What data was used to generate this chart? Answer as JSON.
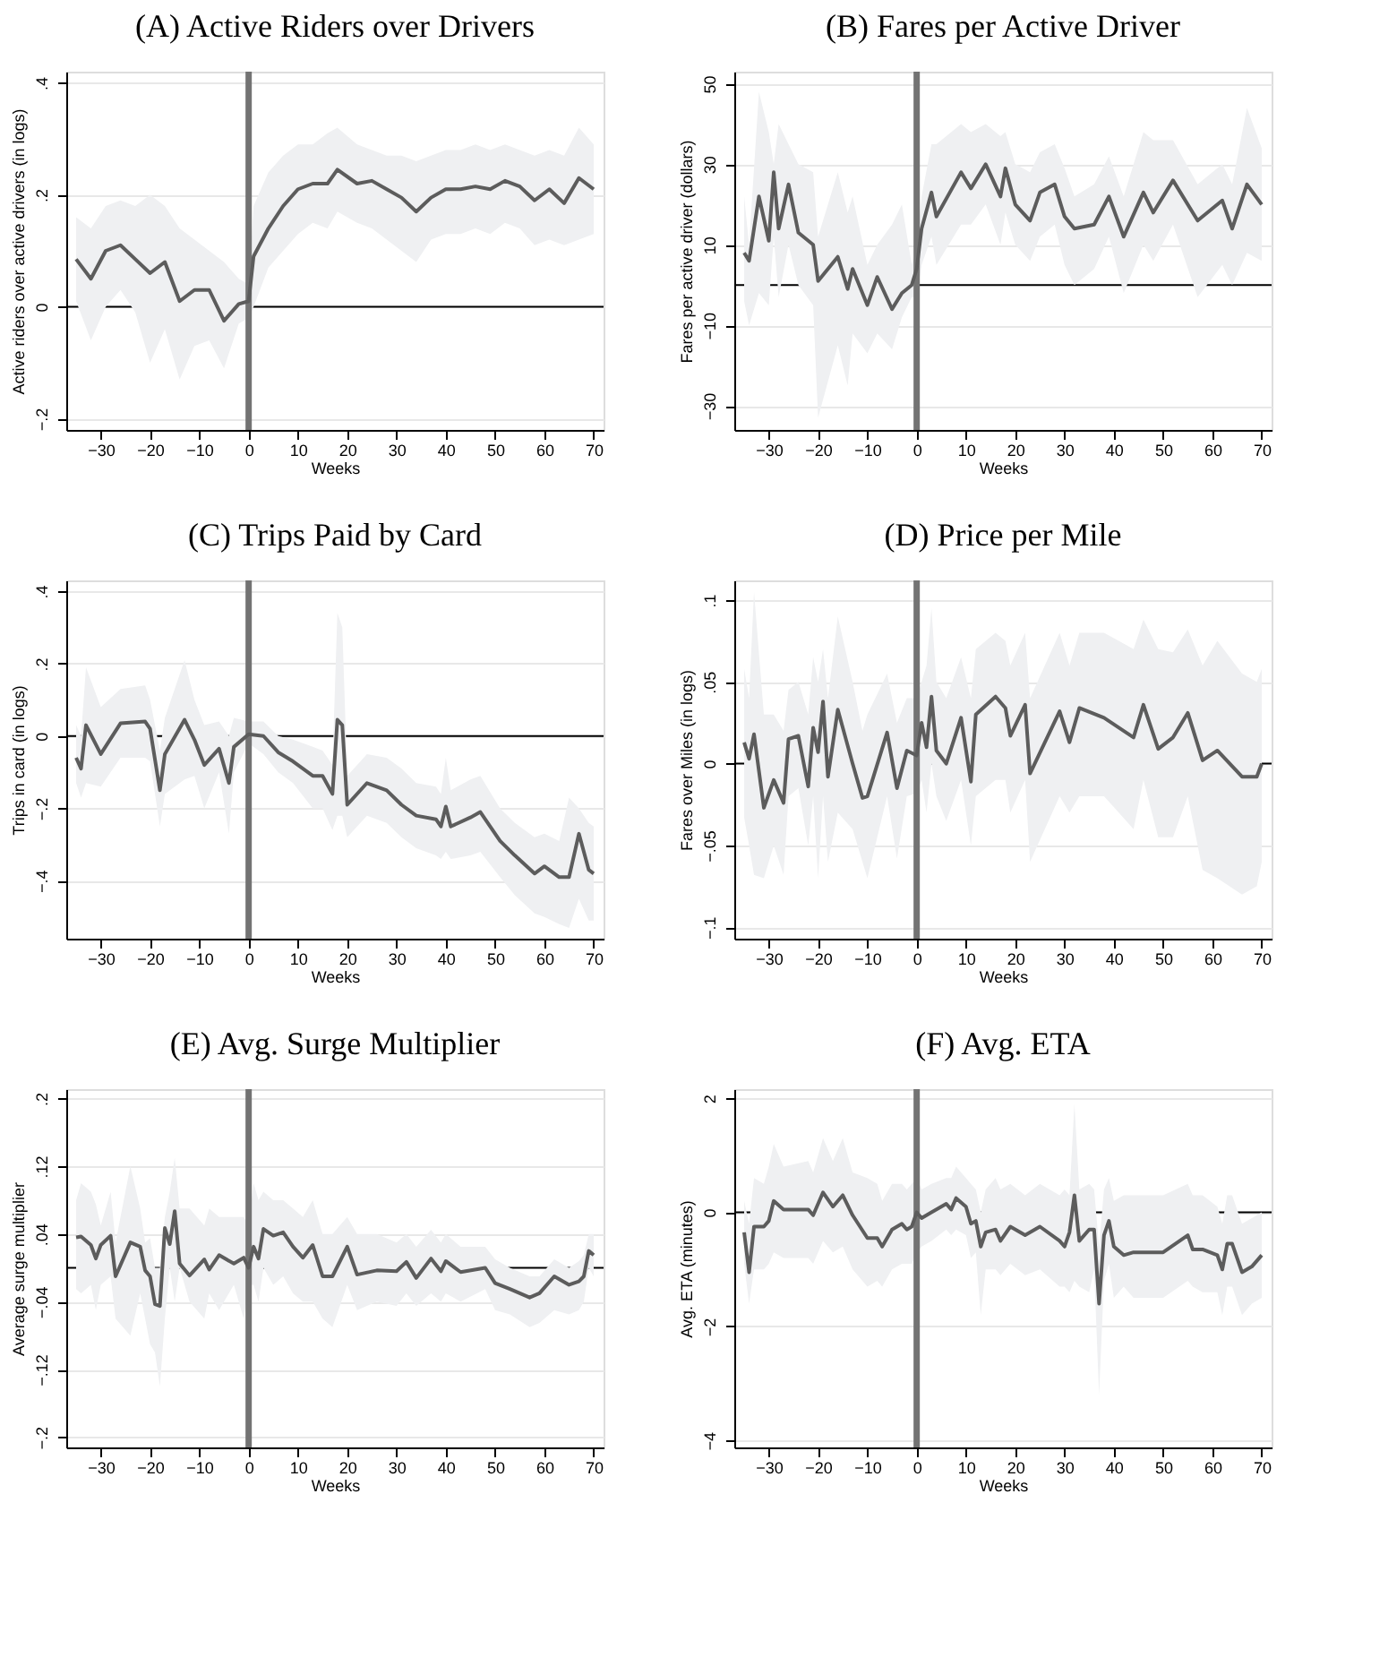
{
  "chart_data": [
    {
      "type": "line",
      "title": "(A) Active Riders over Drivers",
      "xlabel": "Weeks",
      "ylabel": "Active riders over active drivers (in logs)",
      "grid": "y",
      "xlim": [
        -37,
        72
      ],
      "xticks": [
        {
          "value": -30,
          "label": "−30"
        },
        {
          "value": -20,
          "label": "−20"
        },
        {
          "value": -10,
          "label": "−10"
        },
        0,
        10,
        20,
        30,
        40,
        50,
        60,
        70
      ],
      "ylim": [
        -0.22,
        0.42
      ],
      "yticks": [
        {
          "value": -0.2,
          "label": "−.2"
        },
        0,
        {
          "value": 0.2,
          "label": ".2"
        },
        {
          "value": 0.4,
          "label": ".4"
        }
      ],
      "ref_lines": [
        {
          "axis": "y",
          "value": 0,
          "color": "#000000"
        },
        {
          "axis": "x",
          "value": 0,
          "color": "#737373"
        }
      ],
      "x": [
        -35,
        -32,
        -29,
        -26,
        -23,
        -20,
        -17,
        -14,
        -11,
        -8,
        -5,
        -2,
        0,
        1,
        4,
        7,
        10,
        13,
        16,
        18,
        22,
        25,
        28,
        31,
        34,
        37,
        40,
        43,
        46,
        49,
        52,
        55,
        58,
        61,
        64,
        67,
        70
      ],
      "series": [
        {
          "color": "#5c5c5c",
          "values": [
            0.085,
            0.05,
            0.1,
            0.11,
            0.085,
            0.06,
            0.08,
            0.01,
            0.03,
            0.03,
            -0.025,
            0.005,
            0.01,
            0.09,
            0.14,
            0.18,
            0.21,
            0.22,
            0.22,
            0.245,
            0.22,
            0.225,
            0.21,
            0.195,
            0.17,
            0.195,
            0.21,
            0.21,
            0.215,
            0.21,
            0.225,
            0.215,
            0.19,
            0.21,
            0.185,
            0.23,
            0.21
          ],
          "upper": [
            0.16,
            0.14,
            0.18,
            0.19,
            0.18,
            0.2,
            0.18,
            0.14,
            0.12,
            0.1,
            0.08,
            0.05,
            0.04,
            0.18,
            0.24,
            0.27,
            0.29,
            0.29,
            0.31,
            0.32,
            0.29,
            0.28,
            0.27,
            0.27,
            0.26,
            0.27,
            0.28,
            0.28,
            0.29,
            0.28,
            0.29,
            0.28,
            0.27,
            0.28,
            0.27,
            0.32,
            0.29
          ],
          "lower": [
            0.01,
            -0.06,
            0.0,
            0.03,
            -0.01,
            -0.1,
            -0.04,
            -0.13,
            -0.07,
            -0.06,
            -0.11,
            -0.03,
            -0.02,
            0.0,
            0.07,
            0.1,
            0.13,
            0.15,
            0.14,
            0.17,
            0.15,
            0.14,
            0.12,
            0.1,
            0.08,
            0.12,
            0.13,
            0.13,
            0.14,
            0.13,
            0.15,
            0.14,
            0.11,
            0.12,
            0.11,
            0.12,
            0.13
          ]
        }
      ]
    },
    {
      "type": "line",
      "title": "(B) Fares per Active Driver",
      "xlabel": "Weeks",
      "ylabel": "Fares per active driver (dollars)",
      "grid": "y",
      "xlim": [
        -37,
        72
      ],
      "xticks": [
        {
          "value": -30,
          "label": "−30"
        },
        {
          "value": -20,
          "label": "−20"
        },
        {
          "value": -10,
          "label": "−10"
        },
        0,
        10,
        20,
        30,
        40,
        50,
        60,
        70
      ],
      "ylim": [
        -36,
        53
      ],
      "yticks": [
        {
          "value": -30,
          "label": "−30"
        },
        {
          "value": -10,
          "label": "−10"
        },
        10,
        30,
        50
      ],
      "ref_lines": [
        {
          "axis": "y",
          "value": 0,
          "color": "#000000"
        },
        {
          "axis": "x",
          "value": 0,
          "color": "#737373"
        }
      ],
      "x": [
        -35,
        -34,
        -32,
        -30,
        -29,
        -28,
        -26,
        -24,
        -21,
        -20,
        -16,
        -14,
        -13,
        -10,
        -8,
        -5,
        -3,
        -1,
        0,
        1,
        3,
        4,
        9,
        11,
        14,
        17,
        18,
        20,
        23,
        25,
        28,
        30,
        32,
        36,
        39,
        42,
        46,
        48,
        52,
        57,
        62,
        64,
        67,
        70
      ],
      "series": [
        {
          "color": "#5c5c5c",
          "values": [
            8,
            6,
            22,
            11,
            28,
            14,
            25,
            13,
            10,
            1,
            7,
            -1,
            4,
            -5,
            2,
            -6,
            -2,
            0,
            4,
            14,
            23,
            17,
            28,
            24,
            30,
            22,
            29,
            20,
            16,
            23,
            25,
            17,
            14,
            15,
            22,
            12,
            23,
            18,
            26,
            16,
            21,
            14,
            25,
            20
          ],
          "upper": [
            22,
            10,
            48,
            38,
            30,
            40,
            35,
            30,
            28,
            12,
            28,
            18,
            22,
            5,
            10,
            15,
            20,
            5,
            10,
            22,
            35,
            35,
            40,
            38,
            40,
            37,
            38,
            30,
            28,
            33,
            35,
            29,
            22,
            25,
            32,
            22,
            38,
            36,
            36,
            25,
            30,
            25,
            44,
            34
          ],
          "lower": [
            -4,
            -10,
            -2,
            -5,
            12,
            -3,
            10,
            0,
            -5,
            -33,
            -15,
            -25,
            -12,
            -17,
            -12,
            -16,
            -8,
            -3,
            -3,
            5,
            12,
            5,
            15,
            15,
            20,
            10,
            18,
            10,
            6,
            12,
            15,
            5,
            0,
            4,
            12,
            -2,
            10,
            6,
            15,
            -3,
            5,
            0,
            8,
            6
          ]
        }
      ]
    },
    {
      "type": "line",
      "title": "(C) Trips Paid by Card",
      "xlabel": "Weeks",
      "ylabel": "Trips in card (in logs)",
      "grid": "y",
      "xlim": [
        -37,
        72
      ],
      "xticks": [
        {
          "value": -30,
          "label": "−30"
        },
        {
          "value": -20,
          "label": "−20"
        },
        {
          "value": -10,
          "label": "−10"
        },
        0,
        10,
        20,
        30,
        40,
        50,
        60,
        70
      ],
      "ylim": [
        -0.56,
        0.43
      ],
      "yticks": [
        {
          "value": -0.4,
          "label": "−.4"
        },
        {
          "value": -0.2,
          "label": "−.2"
        },
        0,
        {
          "value": 0.2,
          "label": ".2"
        },
        {
          "value": 0.4,
          "label": ".4"
        }
      ],
      "ref_lines": [
        {
          "axis": "y",
          "value": 0,
          "color": "#000000"
        },
        {
          "axis": "x",
          "value": 0,
          "color": "#737373"
        }
      ],
      "x": [
        -35,
        -34,
        -33,
        -30,
        -26,
        -21,
        -20,
        -18,
        -17,
        -13,
        -11,
        -9,
        -6,
        -4,
        -3,
        0,
        3,
        6,
        9,
        13,
        15,
        17,
        18,
        19,
        20,
        24,
        28,
        31,
        34,
        38,
        39,
        40,
        41,
        45,
        47,
        51,
        54,
        58,
        60,
        63,
        65,
        67,
        69,
        70
      ],
      "series": [
        {
          "color": "#5c5c5c",
          "values": [
            -0.06,
            -0.09,
            0.03,
            -0.05,
            0.035,
            0.04,
            0.02,
            -0.15,
            -0.05,
            0.045,
            -0.01,
            -0.08,
            -0.035,
            -0.13,
            -0.03,
            0.005,
            0.0,
            -0.045,
            -0.07,
            -0.11,
            -0.11,
            -0.16,
            0.045,
            0.03,
            -0.19,
            -0.13,
            -0.15,
            -0.19,
            -0.22,
            -0.23,
            -0.25,
            -0.195,
            -0.25,
            -0.225,
            -0.21,
            -0.29,
            -0.33,
            -0.38,
            -0.36,
            -0.39,
            -0.39,
            -0.27,
            -0.37,
            -0.38
          ],
          "upper": [
            0.03,
            0.0,
            0.19,
            0.08,
            0.13,
            0.14,
            0.1,
            -0.04,
            0.05,
            0.21,
            0.1,
            0.03,
            0.04,
            0.0,
            0.05,
            0.04,
            0.04,
            0.0,
            -0.01,
            -0.03,
            -0.04,
            -0.08,
            0.34,
            0.3,
            -0.11,
            -0.05,
            -0.06,
            -0.09,
            -0.13,
            -0.14,
            -0.16,
            -0.06,
            -0.15,
            -0.12,
            -0.11,
            -0.2,
            -0.24,
            -0.28,
            -0.27,
            -0.29,
            -0.17,
            -0.2,
            -0.24,
            -0.25
          ],
          "lower": [
            -0.13,
            -0.17,
            -0.13,
            -0.14,
            -0.06,
            -0.06,
            -0.07,
            -0.25,
            -0.16,
            -0.12,
            -0.11,
            -0.2,
            -0.1,
            -0.27,
            -0.1,
            -0.02,
            -0.05,
            -0.1,
            -0.13,
            -0.2,
            -0.2,
            -0.26,
            -0.22,
            -0.22,
            -0.28,
            -0.22,
            -0.24,
            -0.28,
            -0.31,
            -0.33,
            -0.34,
            -0.32,
            -0.34,
            -0.33,
            -0.32,
            -0.39,
            -0.44,
            -0.49,
            -0.5,
            -0.52,
            -0.53,
            -0.45,
            -0.51,
            -0.51
          ]
        }
      ]
    },
    {
      "type": "line",
      "title": "(D) Price per Mile",
      "xlabel": "Weeks",
      "ylabel": "Fares over Miles (in logs)",
      "grid": "y",
      "xlim": [
        -37,
        72
      ],
      "xticks": [
        {
          "value": -30,
          "label": "−30"
        },
        {
          "value": -20,
          "label": "−20"
        },
        {
          "value": -10,
          "label": "−10"
        },
        0,
        10,
        20,
        30,
        40,
        50,
        60,
        70
      ],
      "ylim": [
        -0.107,
        0.112
      ],
      "yticks": [
        {
          "value": -0.1,
          "label": "−.1"
        },
        {
          "value": -0.05,
          "label": "−.05"
        },
        0,
        {
          "value": 0.05,
          "label": ".05"
        },
        {
          "value": 0.1,
          "label": ".1"
        }
      ],
      "ref_lines": [
        {
          "axis": "y",
          "value": 0,
          "color": "#000000"
        },
        {
          "axis": "x",
          "value": 0,
          "color": "#737373"
        }
      ],
      "x": [
        -35,
        -34,
        -33,
        -31,
        -29,
        -27,
        -26,
        -24,
        -22,
        -21,
        -20,
        -19,
        -18,
        -16,
        -13,
        -11,
        -10,
        -6,
        -4,
        -2,
        0,
        1,
        2,
        3,
        4,
        6,
        9,
        11,
        12,
        16,
        18,
        19,
        22,
        23,
        29,
        31,
        33,
        38,
        41,
        44,
        46,
        49,
        52,
        55,
        58,
        61,
        66,
        69,
        70
      ],
      "series": [
        {
          "color": "#5c5c5c",
          "values": [
            0.013,
            0.003,
            0.018,
            -0.027,
            -0.01,
            -0.024,
            0.015,
            0.017,
            -0.014,
            0.022,
            0.007,
            0.038,
            -0.008,
            0.033,
            0.0,
            -0.021,
            -0.02,
            0.019,
            -0.015,
            0.008,
            0.005,
            0.025,
            0.01,
            0.041,
            0.008,
            0.0,
            0.028,
            -0.011,
            0.03,
            0.041,
            0.034,
            0.017,
            0.036,
            -0.006,
            0.032,
            0.013,
            0.034,
            0.028,
            0.022,
            0.016,
            0.036,
            0.009,
            0.016,
            0.031,
            0.002,
            0.008,
            -0.008,
            -0.008,
            0.0
          ],
          "upper": [
            0.058,
            0.04,
            0.105,
            0.03,
            0.03,
            0.02,
            0.045,
            0.05,
            0.03,
            0.065,
            0.05,
            0.07,
            0.04,
            0.09,
            0.05,
            0.02,
            0.03,
            0.055,
            0.025,
            0.04,
            0.04,
            0.05,
            0.06,
            0.095,
            0.05,
            0.04,
            0.065,
            0.04,
            0.07,
            0.08,
            0.075,
            0.06,
            0.08,
            0.04,
            0.08,
            0.06,
            0.08,
            0.08,
            0.075,
            0.07,
            0.088,
            0.07,
            0.068,
            0.082,
            0.06,
            0.075,
            0.055,
            0.05,
            0.058
          ],
          "lower": [
            -0.033,
            -0.05,
            -0.068,
            -0.07,
            -0.05,
            -0.068,
            -0.02,
            -0.015,
            -0.05,
            -0.02,
            -0.07,
            -0.02,
            -0.06,
            -0.03,
            -0.04,
            -0.06,
            -0.07,
            -0.02,
            -0.058,
            -0.02,
            -0.018,
            -0.01,
            -0.03,
            0.0,
            -0.02,
            -0.035,
            -0.01,
            -0.05,
            -0.02,
            -0.01,
            -0.01,
            -0.03,
            -0.01,
            -0.06,
            -0.02,
            -0.03,
            -0.02,
            -0.02,
            -0.03,
            -0.04,
            -0.01,
            -0.045,
            -0.045,
            -0.02,
            -0.065,
            -0.07,
            -0.08,
            -0.075,
            -0.06
          ]
        }
      ]
    },
    {
      "type": "line",
      "title": "(E) Avg. Surge Multiplier",
      "xlabel": "Weeks",
      "ylabel": "Average surge multiplier",
      "grid": "y",
      "xlim": [
        -37,
        72
      ],
      "xticks": [
        {
          "value": -30,
          "label": "−30"
        },
        {
          "value": -20,
          "label": "−20"
        },
        {
          "value": -10,
          "label": "−10"
        },
        0,
        10,
        20,
        30,
        40,
        50,
        60,
        70
      ],
      "ylim": [
        -0.212,
        0.211
      ],
      "yticks": [
        {
          "value": -0.2,
          "label": "−.2"
        },
        {
          "value": -0.12,
          "label": "−.12"
        },
        {
          "value": -0.04,
          "label": "−.04"
        },
        {
          "value": 0.04,
          "label": ".04"
        },
        {
          "value": 0.12,
          "label": ".12"
        },
        {
          "value": 0.2,
          "label": ".2"
        }
      ],
      "ref_lines": [
        {
          "axis": "y",
          "value": 0,
          "color": "#000000"
        },
        {
          "axis": "x",
          "value": 0,
          "color": "#737373"
        }
      ],
      "x": [
        -35,
        -34,
        -32,
        -31,
        -30,
        -28,
        -27,
        -24,
        -22,
        -21,
        -20,
        -19,
        -18,
        -17,
        -16,
        -15,
        -14,
        -12,
        -9,
        -8,
        -6,
        -3,
        -1,
        0,
        1,
        2,
        3,
        5,
        7,
        9,
        11,
        13,
        15,
        17,
        20,
        22,
        26,
        30,
        32,
        34,
        37,
        39,
        40,
        43,
        48,
        50,
        53,
        57,
        59,
        62,
        65,
        67,
        68,
        69,
        70
      ],
      "series": [
        {
          "color": "#5c5c5c",
          "values": [
            0.036,
            0.037,
            0.027,
            0.011,
            0.027,
            0.038,
            -0.01,
            0.03,
            0.025,
            -0.003,
            -0.01,
            -0.043,
            -0.045,
            0.047,
            0.028,
            0.067,
            0.005,
            -0.009,
            0.01,
            -0.002,
            0.015,
            0.005,
            0.012,
            0.0,
            0.025,
            0.011,
            0.046,
            0.038,
            0.042,
            0.025,
            0.012,
            0.027,
            -0.01,
            -0.01,
            0.025,
            -0.008,
            -0.003,
            -0.004,
            0.007,
            -0.012,
            0.011,
            -0.004,
            0.008,
            -0.005,
            0.0,
            -0.018,
            -0.025,
            -0.035,
            -0.03,
            -0.01,
            -0.02,
            -0.016,
            -0.01,
            0.02,
            0.015
          ],
          "upper": [
            0.08,
            0.1,
            0.09,
            0.075,
            0.05,
            0.09,
            0.03,
            0.12,
            0.07,
            0.03,
            0.035,
            0.0,
            0.0,
            0.06,
            0.09,
            0.13,
            0.07,
            0.07,
            0.05,
            0.07,
            0.06,
            0.06,
            0.06,
            0.05,
            0.1,
            0.08,
            0.09,
            0.08,
            0.08,
            0.07,
            0.06,
            0.08,
            0.04,
            0.04,
            0.06,
            0.04,
            0.04,
            0.03,
            0.04,
            0.025,
            0.045,
            0.03,
            0.04,
            0.025,
            0.025,
            0.01,
            0.0,
            -0.01,
            -0.01,
            0.01,
            0.0,
            0.008,
            0.015,
            0.04,
            0.04
          ],
          "lower": [
            -0.025,
            -0.03,
            -0.02,
            -0.05,
            -0.02,
            -0.01,
            -0.06,
            -0.08,
            -0.03,
            -0.06,
            -0.09,
            -0.1,
            -0.14,
            -0.06,
            0.0,
            -0.04,
            0.0,
            -0.04,
            -0.06,
            -0.03,
            -0.05,
            -0.02,
            -0.06,
            -0.02,
            -0.02,
            -0.04,
            0.0,
            -0.02,
            -0.01,
            -0.03,
            -0.04,
            -0.04,
            -0.06,
            -0.07,
            -0.02,
            -0.05,
            -0.04,
            -0.045,
            -0.03,
            -0.045,
            -0.03,
            -0.04,
            -0.03,
            -0.04,
            -0.025,
            -0.05,
            -0.055,
            -0.07,
            -0.065,
            -0.05,
            -0.055,
            -0.05,
            -0.04,
            0.0,
            -0.01
          ]
        }
      ]
    },
    {
      "type": "line",
      "title": "(F) Avg. ETA",
      "xlabel": "Weeks",
      "ylabel": "Avg. ETA (minutes)",
      "grid": "y",
      "xlim": [
        -37,
        72
      ],
      "xticks": [
        {
          "value": -30,
          "label": "−30"
        },
        {
          "value": -20,
          "label": "−20"
        },
        {
          "value": -10,
          "label": "−10"
        },
        0,
        10,
        20,
        30,
        40,
        50,
        60,
        70
      ],
      "ylim": [
        -4.12,
        2.16
      ],
      "yticks": [
        {
          "value": -4,
          "label": "−4"
        },
        {
          "value": -2,
          "label": "−2"
        },
        0,
        2
      ],
      "ref_lines": [
        {
          "axis": "y",
          "value": 0,
          "color": "#000000"
        },
        {
          "axis": "x",
          "value": 0,
          "color": "#737373"
        }
      ],
      "x": [
        -35,
        -34,
        -33,
        -31,
        -30,
        -29,
        -27,
        -22,
        -21,
        -19,
        -17,
        -15,
        -13,
        -10,
        -8,
        -7,
        -5,
        -3,
        -2,
        -1,
        0,
        1,
        3,
        6,
        7,
        8,
        10,
        11,
        12,
        13,
        14,
        16,
        17,
        19,
        22,
        25,
        29,
        30,
        31,
        32,
        33,
        35,
        36,
        37,
        38,
        39,
        40,
        42,
        44,
        47,
        50,
        55,
        56,
        58,
        61,
        62,
        63,
        64,
        66,
        68,
        70
      ],
      "series": [
        {
          "color": "#5c5c5c",
          "values": [
            -0.35,
            -1.05,
            -0.25,
            -0.25,
            -0.15,
            0.2,
            0.05,
            0.05,
            -0.05,
            0.35,
            0.1,
            0.3,
            -0.05,
            -0.45,
            -0.45,
            -0.6,
            -0.3,
            -0.2,
            -0.3,
            -0.25,
            0.0,
            -0.1,
            0.0,
            0.15,
            0.05,
            0.25,
            0.1,
            -0.2,
            -0.15,
            -0.6,
            -0.35,
            -0.3,
            -0.5,
            -0.25,
            -0.4,
            -0.25,
            -0.5,
            -0.6,
            -0.35,
            0.3,
            -0.5,
            -0.3,
            -0.3,
            -1.6,
            -0.4,
            -0.15,
            -0.6,
            -0.75,
            -0.7,
            -0.7,
            -0.7,
            -0.4,
            -0.65,
            -0.65,
            -0.75,
            -1.0,
            -0.55,
            -0.55,
            -1.05,
            -0.95,
            -0.75
          ],
          "upper": [
            0.2,
            -0.2,
            0.6,
            0.5,
            0.8,
            1.2,
            0.8,
            0.9,
            0.7,
            1.3,
            0.9,
            1.3,
            0.7,
            0.6,
            0.5,
            0.2,
            0.5,
            0.5,
            0.4,
            0.5,
            0.6,
            0.4,
            0.5,
            0.6,
            0.6,
            0.8,
            0.6,
            0.5,
            0.4,
            0.0,
            0.4,
            0.6,
            0.4,
            0.5,
            0.3,
            0.5,
            0.3,
            0.4,
            0.3,
            1.9,
            0.4,
            0.5,
            0.4,
            -0.6,
            0.4,
            0.6,
            0.2,
            0.3,
            0.3,
            0.3,
            0.3,
            0.5,
            0.3,
            0.3,
            0.1,
            -0.2,
            0.3,
            0.3,
            -0.2,
            -0.1,
            0.0
          ],
          "lower": [
            -0.9,
            -1.6,
            -1.0,
            -1.0,
            -0.9,
            -0.7,
            -0.8,
            -0.8,
            -0.9,
            -0.5,
            -0.7,
            -0.6,
            -1.0,
            -1.3,
            -1.2,
            -1.3,
            -1.0,
            -0.9,
            -0.9,
            -0.9,
            -0.7,
            -0.6,
            -0.5,
            -0.3,
            -0.4,
            -0.3,
            -0.4,
            -0.8,
            -0.7,
            -1.8,
            -1.0,
            -1.0,
            -1.1,
            -0.9,
            -1.1,
            -1.0,
            -1.3,
            -1.3,
            -1.4,
            -1.2,
            -1.3,
            -1.4,
            -1.0,
            -3.2,
            -1.2,
            -0.9,
            -1.5,
            -1.3,
            -1.5,
            -1.5,
            -1.5,
            -1.2,
            -1.3,
            -1.4,
            -1.4,
            -1.8,
            -1.3,
            -1.3,
            -1.8,
            -1.6,
            -1.5
          ]
        }
      ]
    }
  ]
}
